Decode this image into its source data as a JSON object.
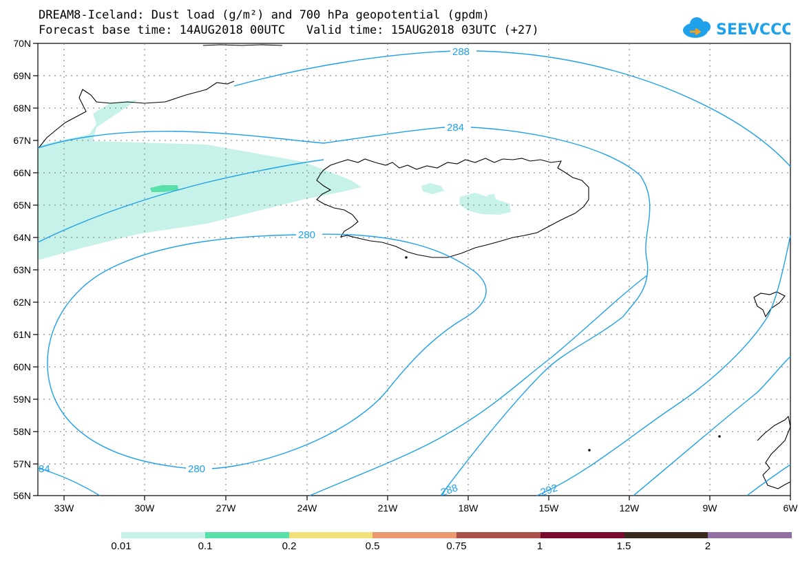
{
  "title_line1": "DREAM8-Iceland: Dust load (g/m²) and 700 hPa geopotential (gpdm)",
  "title_line2": "Forecast base time: 14AUG2018 00UTC   Valid time: 15AUG2018 03UTC (+27)",
  "logo_text": "SEEVCCC",
  "lat_labels": [
    "70N",
    "69N",
    "68N",
    "67N",
    "66N",
    "65N",
    "64N",
    "63N",
    "62N",
    "61N",
    "60N",
    "59N",
    "58N",
    "57N",
    "56N"
  ],
  "lon_labels": [
    "33W",
    "30W",
    "27W",
    "24W",
    "21W",
    "18W",
    "15W",
    "12W",
    "9W",
    "6W"
  ],
  "contour_labels": {
    "c280a": "280",
    "c280b": "280",
    "c284": "284",
    "c288": "288",
    "c288b": "288",
    "c292": "292",
    "c284b": "84"
  },
  "colorbar": {
    "labels": [
      "0.01",
      "0.1",
      "0.2",
      "0.5",
      "0.75",
      "1",
      "1.5",
      "2"
    ],
    "colors": [
      "#c6f2ea",
      "#58e0a8",
      "#f2e07a",
      "#ea9a6e",
      "#a8504a",
      "#7a0a30",
      "#3a2a1e",
      "#9070a0"
    ]
  },
  "colors": {
    "contour": "#1ea0ea",
    "dust_light": "#c6f2ea",
    "dust_mid": "#58e0a8",
    "coast": "#000000"
  }
}
